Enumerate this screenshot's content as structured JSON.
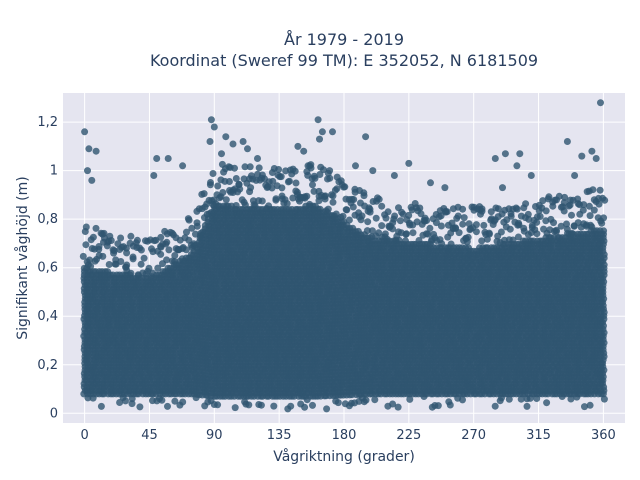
{
  "chart_data": {
    "type": "scatter",
    "title_lines": [
      "År 1979 - 2019",
      "Koordinat (Sweref 99 TM): E 352052, N 6181509"
    ],
    "xlabel": "Vågriktning (grader)",
    "ylabel": "Signifikant våghöjd (m)",
    "xlim": [
      -15,
      375
    ],
    "ylim": [
      -0.04,
      1.32
    ],
    "x_ticks": [
      0,
      45,
      90,
      135,
      180,
      225,
      270,
      315,
      360
    ],
    "y_ticks": [
      0,
      0.2,
      0.4,
      0.6,
      0.8,
      1,
      1.2
    ],
    "y_tick_labels": [
      "0",
      "0,2",
      "0,4",
      "0,6",
      "0,8",
      "1",
      "1,2"
    ],
    "grid": true,
    "background": "#e5e5f0",
    "marker_color": "#2f5570",
    "dense_band": [
      {
        "x": 0,
        "lower": 0.08,
        "upper": 0.6
      },
      {
        "x": 45,
        "lower": 0.08,
        "upper": 0.56
      },
      {
        "x": 75,
        "lower": 0.08,
        "upper": 0.66
      },
      {
        "x": 90,
        "lower": 0.07,
        "upper": 0.86
      },
      {
        "x": 135,
        "lower": 0.07,
        "upper": 0.84
      },
      {
        "x": 160,
        "lower": 0.07,
        "upper": 0.86
      },
      {
        "x": 200,
        "lower": 0.08,
        "upper": 0.72
      },
      {
        "x": 270,
        "lower": 0.08,
        "upper": 0.68
      },
      {
        "x": 315,
        "lower": 0.08,
        "upper": 0.72
      },
      {
        "x": 360,
        "lower": 0.08,
        "upper": 0.76
      }
    ],
    "points": [
      [
        0,
        1.16
      ],
      [
        3,
        1.09
      ],
      [
        8,
        1.08
      ],
      [
        2,
        1.0
      ],
      [
        5,
        0.96
      ],
      [
        50,
        1.05
      ],
      [
        58,
        1.05
      ],
      [
        48,
        0.98
      ],
      [
        68,
        1.02
      ],
      [
        88,
        1.21
      ],
      [
        90,
        1.18
      ],
      [
        87,
        1.12
      ],
      [
        98,
        1.14
      ],
      [
        103,
        1.11
      ],
      [
        110,
        1.12
      ],
      [
        113,
        1.09
      ],
      [
        95,
        1.07
      ],
      [
        120,
        1.05
      ],
      [
        148,
        1.1
      ],
      [
        152,
        1.08
      ],
      [
        162,
        1.21
      ],
      [
        165,
        1.16
      ],
      [
        163,
        1.13
      ],
      [
        172,
        1.16
      ],
      [
        155,
        1.02
      ],
      [
        170,
        1.0
      ],
      [
        195,
        1.14
      ],
      [
        188,
        1.02
      ],
      [
        200,
        1.0
      ],
      [
        215,
        0.98
      ],
      [
        225,
        1.03
      ],
      [
        240,
        0.95
      ],
      [
        250,
        0.93
      ],
      [
        285,
        1.05
      ],
      [
        292,
        1.07
      ],
      [
        302,
        1.07
      ],
      [
        300,
        1.02
      ],
      [
        290,
        0.93
      ],
      [
        310,
        0.98
      ],
      [
        335,
        1.12
      ],
      [
        345,
        1.06
      ],
      [
        352,
        1.08
      ],
      [
        358,
        1.28
      ],
      [
        355,
        1.05
      ],
      [
        340,
        0.98
      ]
    ]
  }
}
